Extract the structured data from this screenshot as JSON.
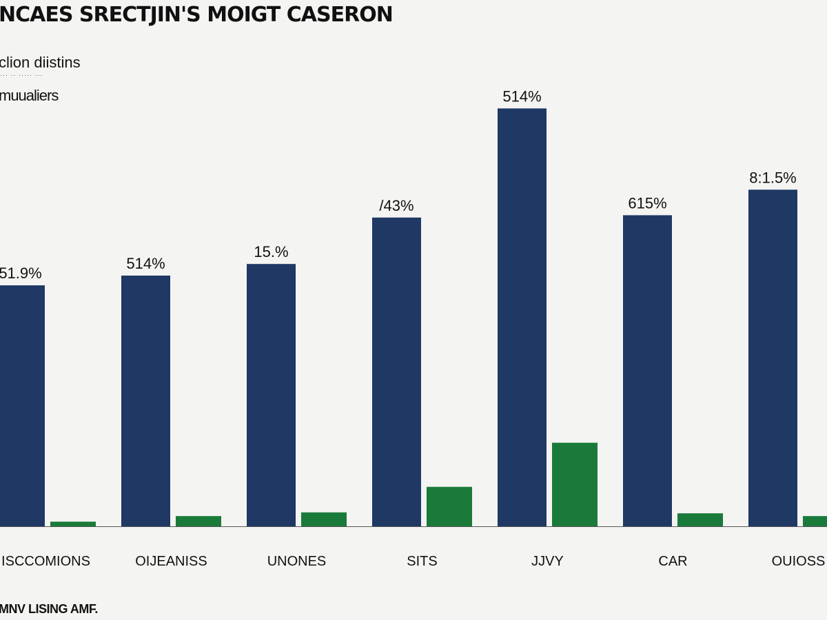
{
  "header": {
    "title": "NCAES SRECTJIN'S MOIGT CASERON",
    "subtitle": "clion diistins",
    "subnote": "··· ·· ····· ···",
    "legend_label": "muualiers"
  },
  "footer": {
    "text": "MNV LISING AMF."
  },
  "colors": {
    "primary_bar": "#1f3864",
    "secondary_bar": "#1a7a3a",
    "background": "#f4f4f2",
    "axis": "#555555"
  },
  "chart_data": {
    "type": "bar",
    "categories": [
      "ISCCOMIONS",
      "OIJEANISS",
      "UNONES",
      "SITS",
      "JJVY",
      "CAR",
      "OUIOSS"
    ],
    "series": [
      {
        "color": "#1f3864",
        "values": [
          51.9,
          54.0,
          56.5,
          66.5,
          90.0,
          67.0,
          72.5
        ],
        "data_labels": [
          "51.9%",
          "514%",
          "15.%",
          "/43%",
          "514%",
          "615%",
          "8:1.5%"
        ]
      },
      {
        "color": "#1a7a3a",
        "values": [
          1.0,
          2.2,
          3.0,
          8.5,
          18.0,
          2.8,
          2.2
        ]
      }
    ],
    "ylim": [
      0,
      100
    ],
    "grid": false
  }
}
